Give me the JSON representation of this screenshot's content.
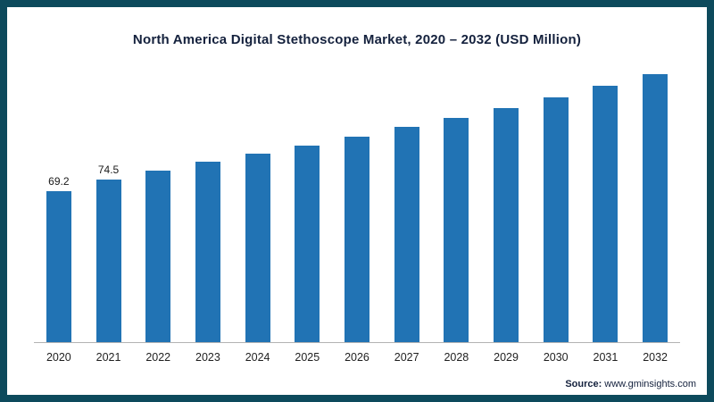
{
  "chart_data": {
    "type": "bar",
    "title": "North America Digital Stethoscope Market, 2020 – 2032 (USD Million)",
    "categories": [
      "2020",
      "2021",
      "2022",
      "2023",
      "2024",
      "2025",
      "2026",
      "2027",
      "2028",
      "2029",
      "2030",
      "2031",
      "2032"
    ],
    "values": [
      69.2,
      74.5,
      78.6,
      82.5,
      86.4,
      90.0,
      94.0,
      98.6,
      102.5,
      107.0,
      112.0,
      117.2,
      122.5
    ],
    "data_labels": [
      "69.2",
      "74.5",
      "",
      "",
      "",
      "",
      "",
      "",
      "",
      "",
      "",
      "",
      ""
    ],
    "xlabel": "",
    "ylabel": "",
    "ylim": [
      0,
      130
    ],
    "grid": false,
    "legend": "none",
    "bar_color": "#2173b4",
    "frame_color": "#0d4a5c",
    "source_prefix": "Source:",
    "source_text": "www.gminsights.com"
  }
}
